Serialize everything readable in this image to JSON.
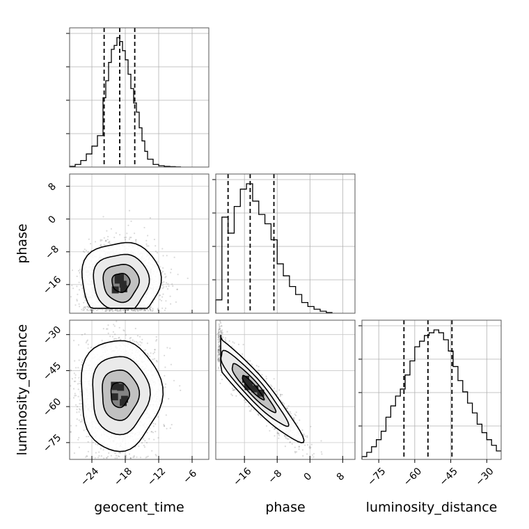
{
  "chart_data": {
    "type": "corner",
    "parameters": [
      "geocent_time",
      "phase",
      "luminosity_distance"
    ],
    "grid": true,
    "histogram_color": "#000000",
    "scatter_color": "#808080",
    "axes": {
      "geocent_time": {
        "label": "geocent_time",
        "range": [
          -28,
          -3
        ],
        "ticks": [
          -24,
          -18,
          -12,
          -6
        ],
        "tick_labels": [
          "−24",
          "−18",
          "−12",
          "−6"
        ],
        "quantiles": [
          -21.8,
          -19.0,
          -16.3
        ]
      },
      "phase": {
        "label": "phase",
        "range": [
          -23,
          11
        ],
        "ticks": [
          -16,
          -8,
          0,
          8
        ],
        "tick_labels": [
          "−16",
          "−8",
          "0",
          "8"
        ],
        "quantiles": [
          -20.0,
          -14.6,
          -8.8
        ]
      },
      "luminosity_distance": {
        "label": "luminosity_distance",
        "range": [
          -82,
          -24
        ],
        "ticks": [
          -75,
          -60,
          -45,
          -30
        ],
        "tick_labels": [
          "−75",
          "−60",
          "−45",
          "−30"
        ],
        "quantiles": [
          -64.5,
          -54.5,
          -44.5
        ]
      }
    },
    "marginal_histograms": {
      "geocent_time": {
        "edges": [
          -28,
          -27,
          -26,
          -25,
          -24,
          -23,
          -22,
          -21.5,
          -21,
          -20.5,
          -20,
          -19.5,
          -19,
          -18.5,
          -18,
          -17.5,
          -17,
          -16.5,
          -16,
          -15.5,
          -15,
          -14.5,
          -14,
          -13,
          -12,
          -11,
          -10,
          -9,
          -8
        ],
        "counts": [
          0.005,
          0.02,
          0.05,
          0.1,
          0.16,
          0.24,
          0.53,
          0.66,
          0.8,
          0.9,
          0.93,
          0.99,
          0.96,
          0.89,
          0.82,
          0.71,
          0.6,
          0.49,
          0.42,
          0.3,
          0.2,
          0.12,
          0.06,
          0.02,
          0.01,
          0.005,
          0.003,
          0.001
        ]
      },
      "phase": {
        "edges": [
          -23,
          -21.5,
          -20,
          -18.5,
          -17,
          -15.5,
          -14,
          -12.5,
          -11,
          -9.5,
          -8,
          -6.5,
          -5,
          -3.5,
          -2,
          -0.5,
          1,
          2.5,
          4,
          5.5
        ],
        "counts": [
          0.1,
          0.72,
          0.6,
          0.8,
          0.93,
          0.97,
          0.84,
          0.74,
          0.67,
          0.55,
          0.37,
          0.28,
          0.2,
          0.14,
          0.08,
          0.05,
          0.03,
          0.015,
          0.005
        ]
      },
      "luminosity_distance": {
        "edges": [
          -82,
          -80,
          -78,
          -76,
          -74,
          -72,
          -70,
          -68,
          -66,
          -64,
          -62,
          -60,
          -58,
          -56,
          -54,
          -52,
          -50,
          -48,
          -46,
          -44,
          -42,
          -40,
          -38,
          -36,
          -34,
          -32,
          -30,
          -28,
          -26,
          -24
        ],
        "counts": [
          0.02,
          0.05,
          0.09,
          0.14,
          0.2,
          0.3,
          0.38,
          0.45,
          0.5,
          0.6,
          0.7,
          0.8,
          0.84,
          0.88,
          0.9,
          0.92,
          0.9,
          0.85,
          0.77,
          0.66,
          0.56,
          0.48,
          0.4,
          0.33,
          0.25,
          0.19,
          0.14,
          0.1,
          0.06
        ]
      }
    },
    "joint_distributions": [
      {
        "x": "geocent_time",
        "y": "phase",
        "center": [
          -18.8,
          -15.5
        ],
        "sigma": [
          3.2,
          4.6
        ],
        "correlation": 0.0,
        "truncate_y": [
          -23,
          10
        ]
      },
      {
        "x": "geocent_time",
        "y": "luminosity_distance",
        "center": [
          -19.0,
          -55.0
        ],
        "sigma": [
          3.3,
          10.5
        ],
        "correlation": 0.0,
        "truncate_y": [
          -82,
          -24
        ]
      },
      {
        "x": "phase",
        "y": "luminosity_distance",
        "center": [
          -14.0,
          -52.0
        ],
        "sigma": [
          5.3,
          10.0
        ],
        "correlation": -0.93,
        "truncate_x": [
          -23,
          11
        ]
      }
    ]
  }
}
